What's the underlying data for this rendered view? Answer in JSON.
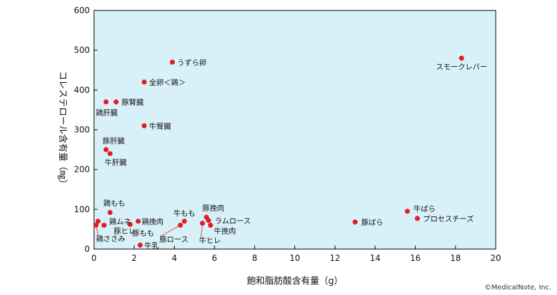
{
  "chart_data": {
    "type": "scatter",
    "title": "",
    "xlabel": "飽和脂肪酸含有量（g）",
    "ylabel": "コレステロール含有量（㎎）",
    "xlim": [
      0,
      20
    ],
    "ylim": [
      0,
      600
    ],
    "xticks": [
      "0",
      "2",
      "4",
      "6",
      "8",
      "10",
      "12",
      "14",
      "16",
      "18",
      "20"
    ],
    "yticks": [
      "0",
      "100",
      "200",
      "300",
      "400",
      "500",
      "600"
    ],
    "grid": false,
    "background_color": "#d8f1f8",
    "point_color": "#e31b23",
    "points": [
      {
        "label": "うずら卵",
        "x": 3.9,
        "y": 470
      },
      {
        "label": "全卵＜鶏＞",
        "x": 2.5,
        "y": 420
      },
      {
        "label": "鶏肝臓",
        "x": 0.6,
        "y": 370
      },
      {
        "label": "豚腎臓",
        "x": 1.1,
        "y": 370
      },
      {
        "label": "牛腎臓",
        "x": 2.5,
        "y": 310
      },
      {
        "label": "豚肝臓",
        "x": 0.6,
        "y": 250
      },
      {
        "label": "牛肝臓",
        "x": 0.8,
        "y": 240
      },
      {
        "label": "鶏もも",
        "x": 0.8,
        "y": 92
      },
      {
        "label": "鶏ムネ",
        "x": 0.2,
        "y": 70
      },
      {
        "label": "豚ヒレ",
        "x": 0.5,
        "y": 60
      },
      {
        "label": "鶏ささみ",
        "x": 0.1,
        "y": 60
      },
      {
        "label": "鶏挽肉",
        "x": 2.2,
        "y": 70
      },
      {
        "label": "豚もも",
        "x": 1.8,
        "y": 62
      },
      {
        "label": "牛乳",
        "x": 2.3,
        "y": 10
      },
      {
        "label": "牛もも",
        "x": 4.5,
        "y": 70
      },
      {
        "label": "豚ロース",
        "x": 4.3,
        "y": 60
      },
      {
        "label": "豚挽肉",
        "x": 5.6,
        "y": 80
      },
      {
        "label": "ラムロース",
        "x": 5.7,
        "y": 72
      },
      {
        "label": "牛ヒレ",
        "x": 5.4,
        "y": 65
      },
      {
        "label": "牛挽肉",
        "x": 5.8,
        "y": 60
      },
      {
        "label": "豚ばら",
        "x": 13.0,
        "y": 68
      },
      {
        "label": "牛ばら",
        "x": 15.6,
        "y": 95
      },
      {
        "label": "プロセスチーズ",
        "x": 16.1,
        "y": 77
      },
      {
        "label": "スモークレバー",
        "x": 18.3,
        "y": 480
      }
    ]
  },
  "credit": "©MedicalNote, Inc."
}
